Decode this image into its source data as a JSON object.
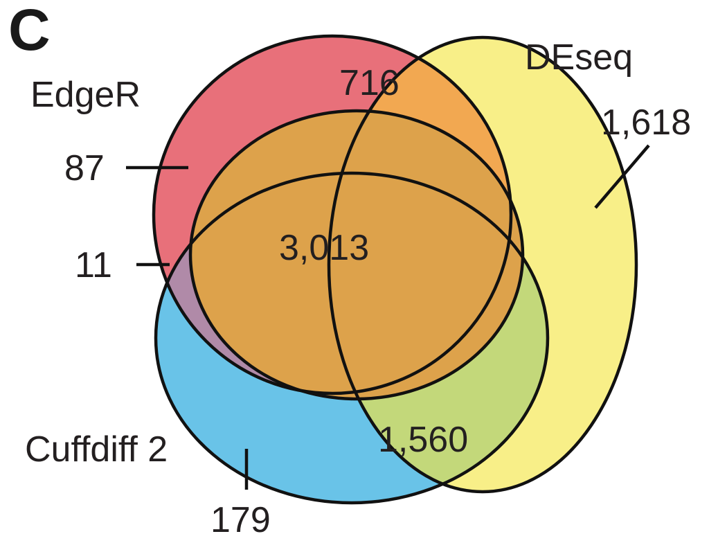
{
  "panel_letter": "C",
  "sets": {
    "edger": {
      "label": "EdgeR",
      "color": "#e8707a"
    },
    "deseq": {
      "label": "DEseq",
      "color": "#f8ef88"
    },
    "cuffdiff": {
      "label": "Cuffdiff 2",
      "color": "#69c3e8"
    }
  },
  "region_colors": {
    "edger_deseq": "#f2a851",
    "all_three": "#dda24b",
    "deseq_cuffdiff": "#c3d87a",
    "edger_cuffdiff": "#b08aa8"
  },
  "regions": {
    "edger_only": "87",
    "edger_cuffdiff_only": "11",
    "edger_deseq_only": "716",
    "all_three": "3,013",
    "deseq_only": "1,618",
    "deseq_cuffdiff_only": "1,560",
    "cuffdiff_only": "179"
  }
}
